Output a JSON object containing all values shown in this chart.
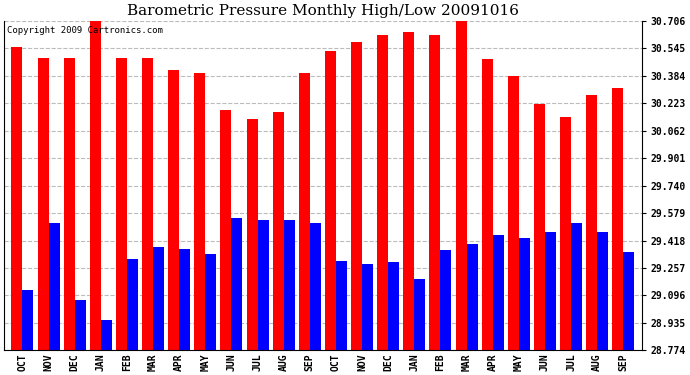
{
  "title": "Barometric Pressure Monthly High/Low 20091016",
  "copyright": "Copyright 2009 Cartronics.com",
  "months": [
    "OCT",
    "NOV",
    "DEC",
    "JAN",
    "FEB",
    "MAR",
    "APR",
    "MAY",
    "JUN",
    "JUL",
    "AUG",
    "SEP",
    "OCT",
    "NOV",
    "DEC",
    "JAN",
    "FEB",
    "MAR",
    "APR",
    "MAY",
    "JUN",
    "JUL",
    "AUG",
    "SEP"
  ],
  "highs": [
    30.55,
    30.49,
    30.49,
    30.72,
    30.49,
    30.49,
    30.42,
    30.4,
    30.18,
    30.13,
    30.17,
    30.4,
    30.53,
    30.58,
    30.62,
    30.64,
    30.62,
    30.72,
    30.48,
    30.38,
    30.22,
    30.14,
    30.27,
    30.31
  ],
  "lows": [
    29.13,
    29.52,
    29.07,
    28.95,
    29.31,
    29.38,
    29.37,
    29.34,
    29.55,
    29.54,
    29.54,
    29.52,
    29.3,
    29.28,
    29.29,
    29.19,
    29.36,
    29.4,
    29.45,
    29.43,
    29.47,
    29.52,
    29.47,
    29.35
  ],
  "yticks": [
    28.774,
    28.935,
    29.096,
    29.257,
    29.418,
    29.579,
    29.74,
    29.901,
    30.062,
    30.223,
    30.384,
    30.545,
    30.706
  ],
  "ymin": 28.774,
  "ymax": 30.706,
  "bar_width": 0.42,
  "high_color": "#ff0000",
  "low_color": "#0000ff",
  "bg_color": "#ffffff",
  "grid_color": "#bbbbbb",
  "title_fontsize": 11,
  "tick_fontsize": 7,
  "copyright_fontsize": 6.5
}
